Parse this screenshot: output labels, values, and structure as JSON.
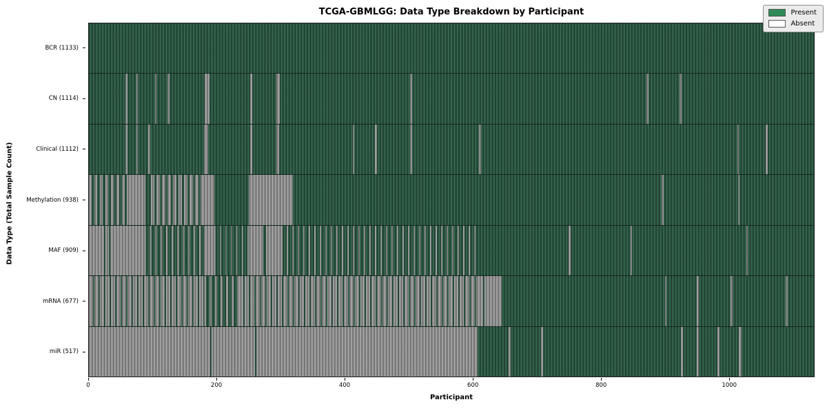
{
  "title": "TCGA-GBMLGG: Data Type Breakdown by Participant",
  "xlabel": "Participant",
  "ylabel": "Data Type (Total Sample Count)",
  "legend": {
    "present_label": "Present",
    "absent_label": "Absent",
    "position": "upper right"
  },
  "colors": {
    "present": "#2d5f46",
    "absent": "#a3a3a3",
    "legend_present": "#2e8b57",
    "legend_absent": "#ffffff",
    "frame": "#1a1a1a"
  },
  "chart_data": {
    "type": "heatmap",
    "title": "TCGA-GBMLGG: Data Type Breakdown by Participant",
    "xlabel": "Participant",
    "ylabel": "Data Type (Total Sample Count)",
    "x_axis": {
      "min": 0,
      "max": 1133,
      "ticks": [
        0,
        200,
        400,
        600,
        800,
        1000
      ]
    },
    "legend_entries": [
      "Present",
      "Absent"
    ],
    "legend_position": "upper right",
    "grid": false,
    "rows": [
      {
        "id": "bcr",
        "label": "BCR (1133)",
        "name": "BCR",
        "total_samples": 1133,
        "base": "present",
        "segments": []
      },
      {
        "id": "cn",
        "label": "CN (1114)",
        "name": "CN",
        "total_samples": 1114,
        "base": "present",
        "segments": [
          {
            "s": 57,
            "e": 60,
            "state": "absent"
          },
          {
            "s": 74,
            "e": 77,
            "state": "absent"
          },
          {
            "s": 103,
            "e": 106,
            "state": "absent"
          },
          {
            "s": 123,
            "e": 126,
            "state": "absent"
          },
          {
            "s": 181,
            "e": 189,
            "state": "absent"
          },
          {
            "s": 252,
            "e": 255,
            "state": "absent"
          },
          {
            "s": 293,
            "e": 298,
            "state": "absent"
          },
          {
            "s": 502,
            "e": 505,
            "state": "absent"
          },
          {
            "s": 871,
            "e": 874,
            "state": "absent"
          },
          {
            "s": 923,
            "e": 926,
            "state": "absent"
          }
        ]
      },
      {
        "id": "clinical",
        "label": "Clinical (1112)",
        "name": "Clinical",
        "total_samples": 1112,
        "base": "present",
        "segments": [
          {
            "s": 57,
            "e": 60,
            "state": "absent"
          },
          {
            "s": 74,
            "e": 77,
            "state": "absent"
          },
          {
            "s": 93,
            "e": 96,
            "state": "absent"
          },
          {
            "s": 180,
            "e": 186,
            "state": "absent"
          },
          {
            "s": 252,
            "e": 255,
            "state": "absent"
          },
          {
            "s": 293,
            "e": 297,
            "state": "absent"
          },
          {
            "s": 412,
            "e": 415,
            "state": "absent"
          },
          {
            "s": 447,
            "e": 450,
            "state": "absent"
          },
          {
            "s": 502,
            "e": 505,
            "state": "absent"
          },
          {
            "s": 610,
            "e": 613,
            "state": "absent"
          },
          {
            "s": 1013,
            "e": 1016,
            "state": "absent"
          },
          {
            "s": 1058,
            "e": 1061,
            "state": "absent"
          }
        ]
      },
      {
        "id": "methylation",
        "label": "Methylation (938)",
        "name": "Methylation",
        "total_samples": 938,
        "base": "present",
        "segments": [
          {
            "s": 0,
            "e": 59,
            "state": "mixed",
            "absent_ratio": 0.5
          },
          {
            "s": 59,
            "e": 88,
            "state": "absent"
          },
          {
            "s": 97,
            "e": 180,
            "state": "mixed",
            "absent_ratio": 0.6
          },
          {
            "s": 180,
            "e": 196,
            "state": "absent"
          },
          {
            "s": 250,
            "e": 319,
            "state": "absent"
          },
          {
            "s": 895,
            "e": 898,
            "state": "absent"
          },
          {
            "s": 1014,
            "e": 1017,
            "state": "absent"
          }
        ]
      },
      {
        "id": "maf",
        "label": "MAF (909)",
        "name": "MAF",
        "total_samples": 909,
        "base": "present",
        "segments": [
          {
            "s": 0,
            "e": 24,
            "state": "absent"
          },
          {
            "s": 26,
            "e": 31,
            "state": "absent"
          },
          {
            "s": 33,
            "e": 86,
            "state": "absent"
          },
          {
            "s": 86,
            "e": 180,
            "state": "mixed",
            "absent_ratio": 0.3
          },
          {
            "s": 180,
            "e": 196,
            "state": "absent"
          },
          {
            "s": 196,
            "e": 250,
            "state": "mixed",
            "absent_ratio": 0.2
          },
          {
            "s": 250,
            "e": 272,
            "state": "absent"
          },
          {
            "s": 277,
            "e": 300,
            "state": "absent"
          },
          {
            "s": 300,
            "e": 610,
            "state": "mixed",
            "absent_ratio": 0.25
          },
          {
            "s": 750,
            "e": 753,
            "state": "absent"
          },
          {
            "s": 846,
            "e": 849,
            "state": "absent"
          },
          {
            "s": 1027,
            "e": 1030,
            "state": "absent"
          }
        ]
      },
      {
        "id": "mrna",
        "label": "mRNA (677)",
        "name": "mRNA",
        "total_samples": 677,
        "base": "present",
        "segments": [
          {
            "s": 0,
            "e": 180,
            "state": "mixed",
            "absent_ratio": 0.75
          },
          {
            "s": 180,
            "e": 235,
            "state": "mixed",
            "absent_ratio": 0.4
          },
          {
            "s": 235,
            "e": 612,
            "state": "mixed",
            "absent_ratio": 0.72
          },
          {
            "s": 612,
            "e": 616,
            "state": "absent"
          },
          {
            "s": 618,
            "e": 645,
            "state": "absent"
          },
          {
            "s": 900,
            "e": 903,
            "state": "absent"
          },
          {
            "s": 950,
            "e": 953,
            "state": "absent"
          },
          {
            "s": 1003,
            "e": 1006,
            "state": "absent"
          },
          {
            "s": 1089,
            "e": 1092,
            "state": "absent"
          }
        ]
      },
      {
        "id": "mir",
        "label": "miR (517)",
        "name": "miR",
        "total_samples": 517,
        "base": "present",
        "segments": [
          {
            "s": 0,
            "e": 190,
            "state": "absent"
          },
          {
            "s": 192,
            "e": 260,
            "state": "absent"
          },
          {
            "s": 262,
            "e": 607,
            "state": "absent"
          },
          {
            "s": 656,
            "e": 659,
            "state": "absent"
          },
          {
            "s": 707,
            "e": 710,
            "state": "absent"
          },
          {
            "s": 925,
            "e": 928,
            "state": "absent"
          },
          {
            "s": 950,
            "e": 953,
            "state": "absent"
          },
          {
            "s": 982,
            "e": 985,
            "state": "absent"
          },
          {
            "s": 1016,
            "e": 1020,
            "state": "absent"
          }
        ]
      }
    ]
  }
}
